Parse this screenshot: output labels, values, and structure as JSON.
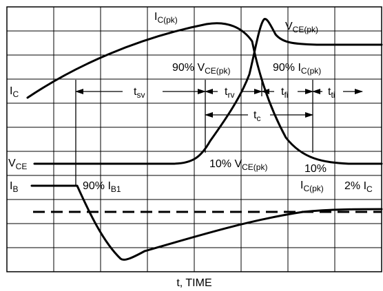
{
  "figure": {
    "curves": [
      {
        "name": "IC"
      },
      {
        "name": "VCE"
      },
      {
        "name": "IB"
      },
      {
        "name": "IB-reference",
        "style": "dashed"
      }
    ],
    "labels": {
      "ic_pk_main": "I",
      "ic_pk_sub": "C(pk)",
      "vce_pk_main": "V",
      "vce_pk_sub": "CE(pk)",
      "ic_main": "I",
      "ic_sub": "C",
      "vce_main": "V",
      "vce_sub": "CE",
      "ib_main": "I",
      "ib_sub": "B",
      "p90_vce_main": "90% V",
      "p90_vce_sub": "CE(pk)",
      "p90_ic_main": "90% I",
      "p90_ic_sub": "C(pk)",
      "p10_vce_main": "10% V",
      "p10_vce_sub": "CE(pk)",
      "p10_ic_pct": "10%",
      "p10_ic_main": "I",
      "p10_ic_sub": "C(pk)",
      "p2_ic_main": "2% I",
      "p2_ic_sub": "C",
      "p90_ib_main": "90% I",
      "p90_ib_sub": "B1",
      "tsv_main": "t",
      "tsv_sub": "sv",
      "trv_main": "t",
      "trv_sub": "rv",
      "tfi_main": "t",
      "tfi_sub": "fi",
      "tti_main": "t",
      "tti_sub": "ti",
      "tc_main": "t",
      "tc_sub": "c"
    },
    "x_axis_label": "t, TIME"
  }
}
